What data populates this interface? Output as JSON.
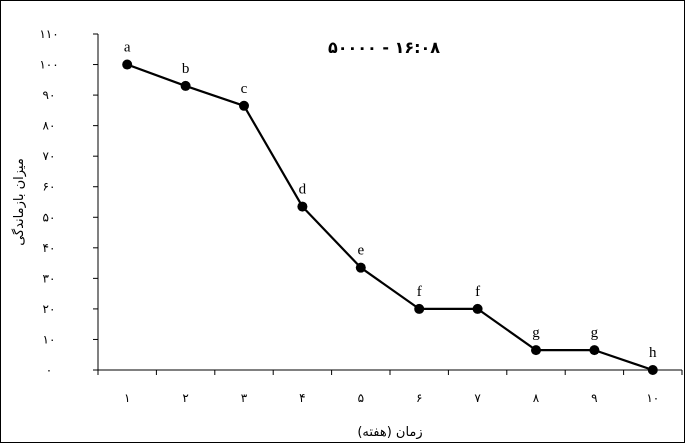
{
  "chart_data": {
    "type": "line",
    "title": "۵۰۰۰۰ - ۱۶:۰۸",
    "xlabel": "زمان (هفته)",
    "ylabel": "میزان بازماندگی",
    "x": [
      1,
      2,
      3,
      4,
      5,
      6,
      7,
      8,
      9,
      10
    ],
    "x_tick_labels": [
      "۱",
      "۲",
      "۳",
      "۴",
      "۵",
      "۶",
      "۷",
      "۸",
      "۹",
      "۱۰"
    ],
    "y_ticks": [
      0,
      10,
      20,
      30,
      40,
      50,
      60,
      70,
      80,
      90,
      100,
      110
    ],
    "y_tick_labels": [
      "۰",
      "۱۰",
      "۲۰",
      "۳۰",
      "۴۰",
      "۵۰",
      "۶۰",
      "۷۰",
      "۸۰",
      "۹۰",
      "۱۰۰",
      "۱۱۰"
    ],
    "ylim": [
      0,
      110
    ],
    "grid": false,
    "series": [
      {
        "values": [
          100,
          93,
          86.5,
          53.5,
          33.5,
          20,
          20,
          6.5,
          6.5,
          0
        ],
        "point_labels": [
          "a",
          "b",
          "c",
          "d",
          "e",
          "f",
          "f",
          "g",
          "g",
          "h"
        ],
        "color": "#000000"
      }
    ]
  }
}
